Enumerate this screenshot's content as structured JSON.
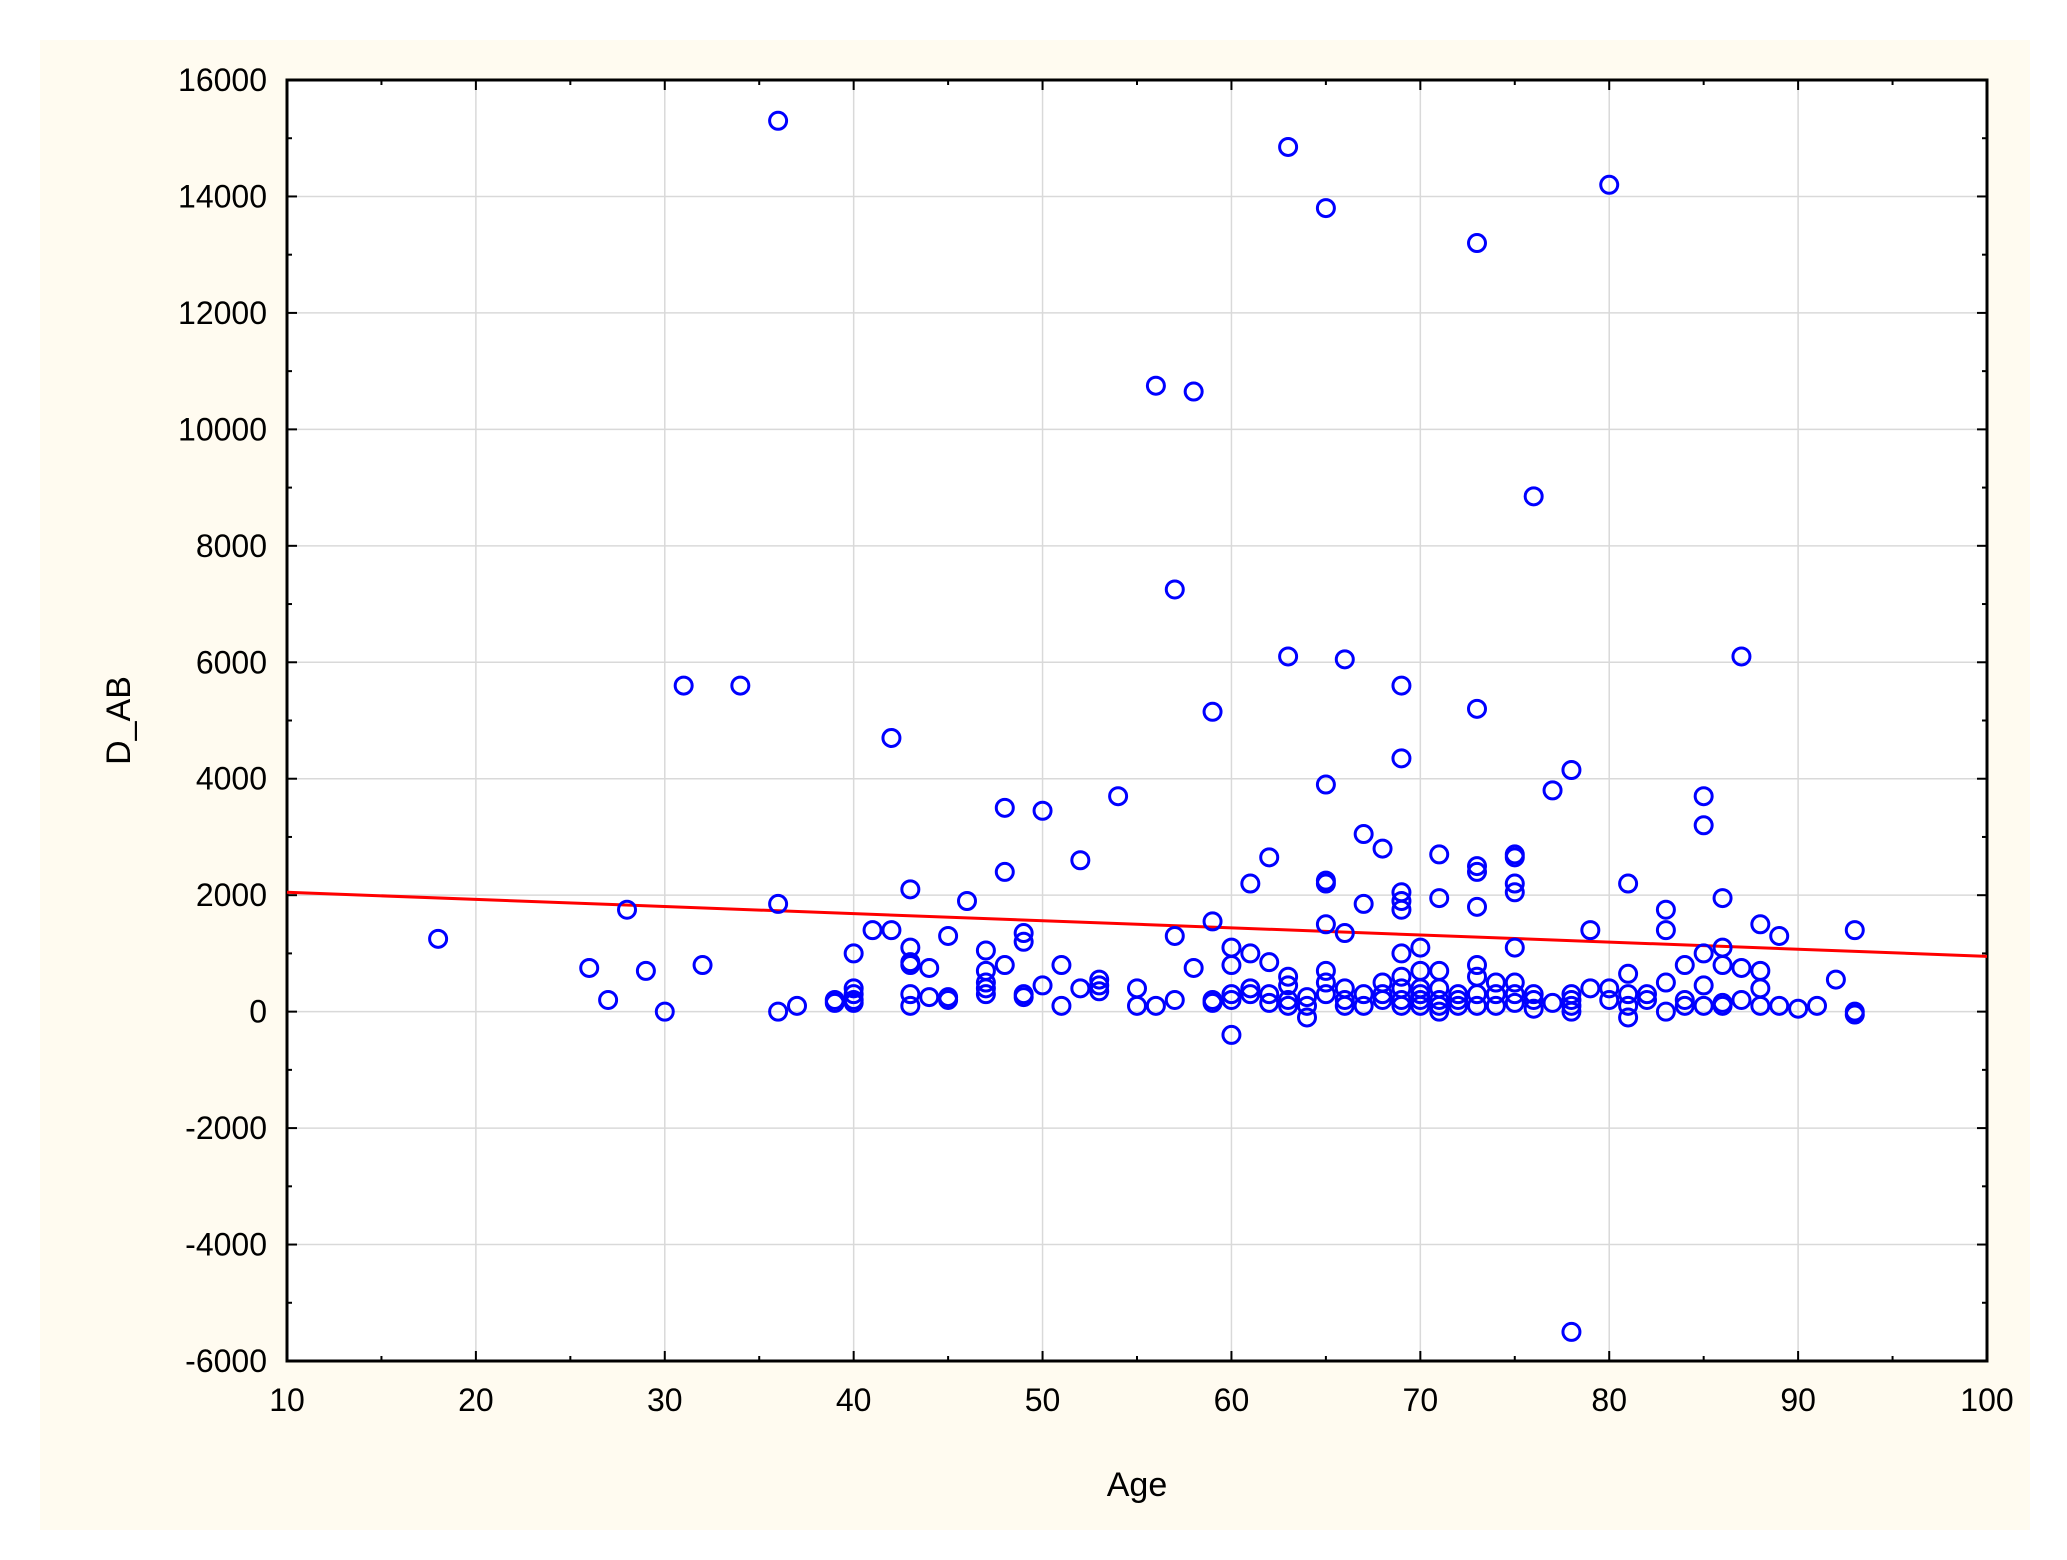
{
  "chart_data": {
    "type": "scatter",
    "xlabel": "Age",
    "ylabel": "D_AB",
    "xlim": [
      10,
      100
    ],
    "ylim": [
      -6000,
      16000
    ],
    "xticks": [
      10,
      20,
      30,
      40,
      50,
      60,
      70,
      80,
      90,
      100
    ],
    "yticks": [
      -6000,
      -4000,
      -2000,
      0,
      2000,
      4000,
      6000,
      8000,
      10000,
      12000,
      14000,
      16000
    ],
    "grid": true,
    "marker_color": "#0000ff",
    "line_color": "#ff0000",
    "trend_line": {
      "x": [
        10,
        100
      ],
      "y": [
        2050,
        950
      ]
    },
    "points": [
      [
        18,
        1250
      ],
      [
        26,
        750
      ],
      [
        27,
        200
      ],
      [
        28,
        1750
      ],
      [
        29,
        700
      ],
      [
        30,
        0
      ],
      [
        31,
        5600
      ],
      [
        32,
        800
      ],
      [
        34,
        5600
      ],
      [
        36,
        15300
      ],
      [
        36,
        1850
      ],
      [
        36,
        0
      ],
      [
        37,
        100
      ],
      [
        39,
        150
      ],
      [
        39,
        200
      ],
      [
        40,
        1000
      ],
      [
        40,
        300
      ],
      [
        40,
        150
      ],
      [
        40,
        400
      ],
      [
        40,
        200
      ],
      [
        41,
        1400
      ],
      [
        42,
        4700
      ],
      [
        42,
        1400
      ],
      [
        43,
        2100
      ],
      [
        43,
        1100
      ],
      [
        43,
        850
      ],
      [
        43,
        800
      ],
      [
        43,
        300
      ],
      [
        43,
        100
      ],
      [
        44,
        750
      ],
      [
        44,
        250
      ],
      [
        45,
        1300
      ],
      [
        45,
        250
      ],
      [
        45,
        200
      ],
      [
        46,
        1900
      ],
      [
        47,
        1050
      ],
      [
        47,
        700
      ],
      [
        47,
        500
      ],
      [
        47,
        400
      ],
      [
        47,
        300
      ],
      [
        48,
        3500
      ],
      [
        48,
        2400
      ],
      [
        48,
        800
      ],
      [
        49,
        1350
      ],
      [
        49,
        1200
      ],
      [
        49,
        300
      ],
      [
        49,
        250
      ],
      [
        50,
        3450
      ],
      [
        50,
        450
      ],
      [
        51,
        800
      ],
      [
        51,
        100
      ],
      [
        52,
        2600
      ],
      [
        52,
        400
      ],
      [
        53,
        550
      ],
      [
        53,
        450
      ],
      [
        53,
        350
      ],
      [
        54,
        3700
      ],
      [
        55,
        400
      ],
      [
        55,
        100
      ],
      [
        56,
        10750
      ],
      [
        56,
        100
      ],
      [
        57,
        7250
      ],
      [
        57,
        1300
      ],
      [
        57,
        200
      ],
      [
        58,
        10650
      ],
      [
        58,
        750
      ],
      [
        59,
        5150
      ],
      [
        59,
        1550
      ],
      [
        59,
        200
      ],
      [
        59,
        150
      ],
      [
        60,
        1100
      ],
      [
        60,
        800
      ],
      [
        60,
        300
      ],
      [
        60,
        200
      ],
      [
        60,
        -400
      ],
      [
        61,
        2200
      ],
      [
        61,
        1000
      ],
      [
        61,
        400
      ],
      [
        61,
        300
      ],
      [
        62,
        2650
      ],
      [
        62,
        850
      ],
      [
        62,
        300
      ],
      [
        62,
        150
      ],
      [
        63,
        14850
      ],
      [
        63,
        6100
      ],
      [
        63,
        600
      ],
      [
        63,
        450
      ],
      [
        63,
        200
      ],
      [
        63,
        100
      ],
      [
        64,
        250
      ],
      [
        64,
        100
      ],
      [
        64,
        -100
      ],
      [
        65,
        13800
      ],
      [
        65,
        3900
      ],
      [
        65,
        2250
      ],
      [
        65,
        2200
      ],
      [
        65,
        1500
      ],
      [
        65,
        700
      ],
      [
        65,
        500
      ],
      [
        65,
        300
      ],
      [
        66,
        6050
      ],
      [
        66,
        1350
      ],
      [
        66,
        400
      ],
      [
        66,
        200
      ],
      [
        66,
        100
      ],
      [
        67,
        3050
      ],
      [
        67,
        1850
      ],
      [
        67,
        300
      ],
      [
        67,
        100
      ],
      [
        68,
        2800
      ],
      [
        68,
        500
      ],
      [
        68,
        300
      ],
      [
        68,
        200
      ],
      [
        69,
        5600
      ],
      [
        69,
        4350
      ],
      [
        69,
        2050
      ],
      [
        69,
        1900
      ],
      [
        69,
        1750
      ],
      [
        69,
        1000
      ],
      [
        69,
        600
      ],
      [
        69,
        400
      ],
      [
        69,
        200
      ],
      [
        69,
        100
      ],
      [
        70,
        1100
      ],
      [
        70,
        700
      ],
      [
        70,
        400
      ],
      [
        70,
        300
      ],
      [
        70,
        200
      ],
      [
        70,
        100
      ],
      [
        71,
        2700
      ],
      [
        71,
        1950
      ],
      [
        71,
        700
      ],
      [
        71,
        400
      ],
      [
        71,
        200
      ],
      [
        71,
        100
      ],
      [
        71,
        0
      ],
      [
        72,
        300
      ],
      [
        72,
        200
      ],
      [
        72,
        100
      ],
      [
        73,
        13200
      ],
      [
        73,
        5200
      ],
      [
        73,
        2500
      ],
      [
        73,
        2400
      ],
      [
        73,
        1800
      ],
      [
        73,
        800
      ],
      [
        73,
        600
      ],
      [
        73,
        300
      ],
      [
        73,
        100
      ],
      [
        74,
        500
      ],
      [
        74,
        300
      ],
      [
        74,
        100
      ],
      [
        75,
        2700
      ],
      [
        75,
        2650
      ],
      [
        75,
        2200
      ],
      [
        75,
        2050
      ],
      [
        75,
        1100
      ],
      [
        75,
        500
      ],
      [
        75,
        300
      ],
      [
        75,
        150
      ],
      [
        76,
        8850
      ],
      [
        76,
        300
      ],
      [
        76,
        200
      ],
      [
        76,
        50
      ],
      [
        77,
        3800
      ],
      [
        77,
        150
      ],
      [
        78,
        4150
      ],
      [
        78,
        300
      ],
      [
        78,
        200
      ],
      [
        78,
        100
      ],
      [
        78,
        0
      ],
      [
        78,
        -5500
      ],
      [
        79,
        1400
      ],
      [
        79,
        400
      ],
      [
        80,
        14200
      ],
      [
        80,
        400
      ],
      [
        80,
        200
      ],
      [
        81,
        2200
      ],
      [
        81,
        650
      ],
      [
        81,
        300
      ],
      [
        81,
        100
      ],
      [
        81,
        -100
      ],
      [
        82,
        300
      ],
      [
        82,
        200
      ],
      [
        83,
        1750
      ],
      [
        83,
        1400
      ],
      [
        83,
        500
      ],
      [
        83,
        0
      ],
      [
        84,
        800
      ],
      [
        84,
        200
      ],
      [
        84,
        100
      ],
      [
        85,
        3700
      ],
      [
        85,
        3200
      ],
      [
        85,
        1000
      ],
      [
        85,
        450
      ],
      [
        85,
        100
      ],
      [
        86,
        1950
      ],
      [
        86,
        1100
      ],
      [
        86,
        800
      ],
      [
        86,
        150
      ],
      [
        86,
        100
      ],
      [
        87,
        6100
      ],
      [
        87,
        750
      ],
      [
        87,
        200
      ],
      [
        88,
        1500
      ],
      [
        88,
        700
      ],
      [
        88,
        400
      ],
      [
        88,
        100
      ],
      [
        89,
        1300
      ],
      [
        89,
        100
      ],
      [
        90,
        50
      ],
      [
        91,
        100
      ],
      [
        92,
        550
      ],
      [
        93,
        1400
      ],
      [
        93,
        0
      ],
      [
        93,
        -50
      ]
    ]
  }
}
